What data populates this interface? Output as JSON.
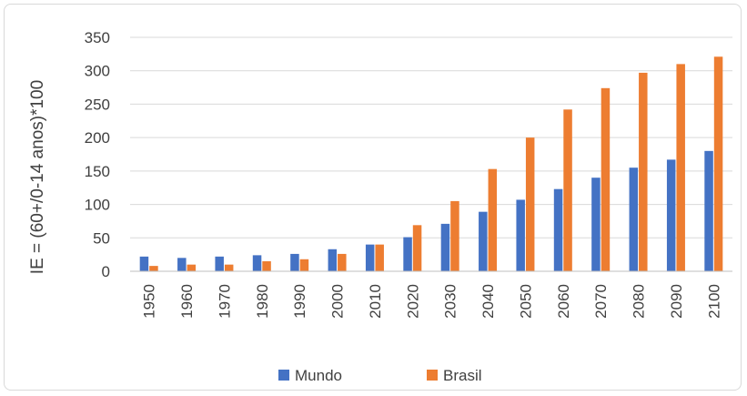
{
  "chart_data": {
    "type": "bar",
    "categories": [
      "1950",
      "1960",
      "1970",
      "1980",
      "1990",
      "2000",
      "2010",
      "2020",
      "2030",
      "2040",
      "2050",
      "2060",
      "2070",
      "2080",
      "2090",
      "2100"
    ],
    "series": [
      {
        "name": "Mundo",
        "color": "#4472c4",
        "values": [
          22,
          20,
          22,
          24,
          26,
          33,
          40,
          51,
          71,
          89,
          107,
          123,
          140,
          155,
          167,
          180
        ]
      },
      {
        "name": "Brasil",
        "color": "#ed7d31",
        "values": [
          8,
          10,
          10,
          15,
          18,
          26,
          40,
          69,
          105,
          153,
          200,
          242,
          274,
          297,
          310,
          321
        ]
      }
    ],
    "ylabel": "IE = (60+/0-14 anos)*100",
    "xlabel": "",
    "ylim": [
      0,
      350
    ],
    "yticks": [
      0,
      50,
      100,
      150,
      200,
      250,
      300,
      350
    ],
    "grid": true,
    "legend": "bottom"
  }
}
